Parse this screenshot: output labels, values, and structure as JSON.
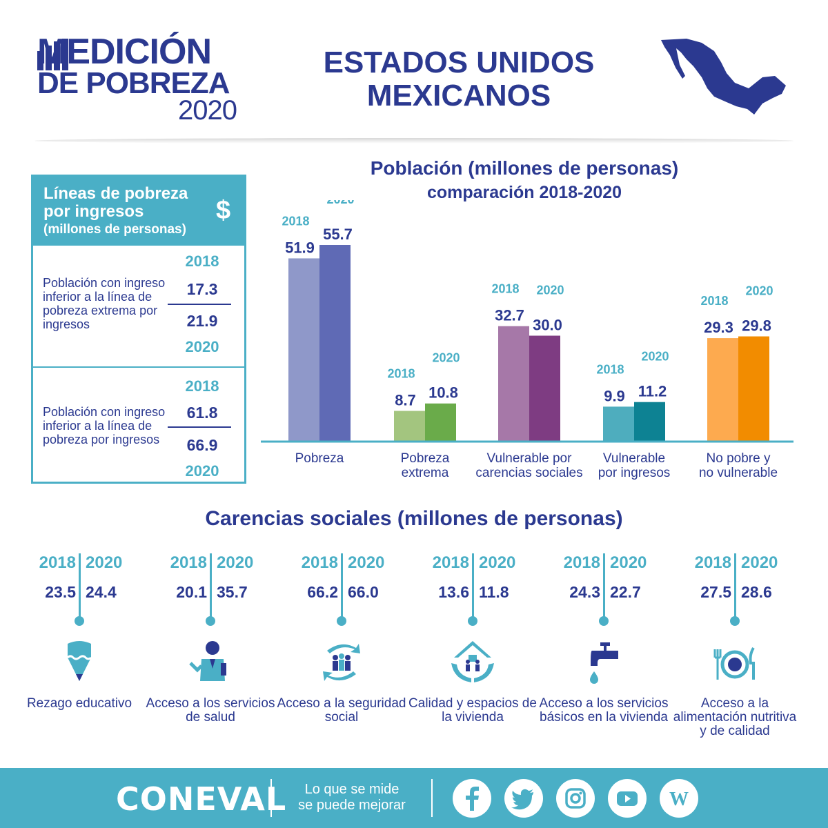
{
  "header": {
    "logo_line1": "MEDICIÓN",
    "logo_line2": "DE POBREZA",
    "logo_year": "2020",
    "country_line1": "ESTADOS UNIDOS",
    "country_line2": "MEXICANOS",
    "map_icon": "mexico-map-icon"
  },
  "poverty_lines": {
    "title": "Líneas de pobreza por ingresos",
    "subtitle": "(millones de personas)",
    "icon_text": "$",
    "rows": [
      {
        "description": "Población con ingreso inferior a la línea de pobreza extrema por ingresos",
        "year_top": "2018",
        "value_top": "17.3",
        "value_bottom": "21.9",
        "year_bottom": "2020"
      },
      {
        "description": "Población con ingreso inferior a la línea de pobreza por ingresos",
        "year_top": "2018",
        "value_top": "61.8",
        "value_bottom": "66.9",
        "year_bottom": "2020"
      }
    ]
  },
  "chart_data": {
    "type": "bar",
    "title": "Población (millones de personas)",
    "subtitle": "comparación 2018-2020",
    "categories": [
      "Pobreza",
      "Pobreza extrema",
      "Vulnerable por carencias sociales",
      "Vulnerable por ingresos",
      "No pobre y no vulnerable"
    ],
    "category_labels": [
      [
        "Pobreza"
      ],
      [
        "Pobreza",
        "extrema"
      ],
      [
        "Vulnerable por",
        "carencias sociales"
      ],
      [
        "Vulnerable",
        "por ingresos"
      ],
      [
        "No pobre y",
        "no vulnerable"
      ]
    ],
    "series": [
      {
        "name": "2018",
        "values": [
          51.9,
          8.7,
          32.7,
          9.9,
          29.3
        ]
      },
      {
        "name": "2020",
        "values": [
          55.7,
          10.8,
          30.0,
          11.2,
          29.8
        ]
      }
    ],
    "value_labels": [
      [
        "51.9",
        "55.7"
      ],
      [
        "8.7",
        "10.8"
      ],
      [
        "32.7",
        "30.0"
      ],
      [
        "9.9",
        "11.2"
      ],
      [
        "29.3",
        "29.8"
      ]
    ],
    "colors_2018": [
      "#8f98c9",
      "#a3c57f",
      "#a678a8",
      "#4eadbe",
      "#fdaa4f"
    ],
    "colors_2020": [
      "#5f6ab5",
      "#6aab4a",
      "#7e3c82",
      "#0d8293",
      "#f28c00"
    ],
    "ylim": [
      0,
      60
    ],
    "legend": "none",
    "grid": false
  },
  "carencias": {
    "title": "Carencias sociales (millones de personas)",
    "year_left": "2018",
    "year_right": "2020",
    "items": [
      {
        "v2018": "23.5",
        "v2020": "24.4",
        "label": "Rezago educativo",
        "icon": "pencil-icon"
      },
      {
        "v2018": "20.1",
        "v2020": "35.7",
        "label": "Acceso a los servicios de salud",
        "icon": "doctor-icon"
      },
      {
        "v2018": "66.2",
        "v2020": "66.0",
        "label": "Acceso a la seguridad social",
        "icon": "social-security-icon"
      },
      {
        "v2018": "13.6",
        "v2020": "11.8",
        "label": "Calidad y espacios de la vivienda",
        "icon": "house-hands-icon"
      },
      {
        "v2018": "24.3",
        "v2020": "22.7",
        "label": "Acceso a los servicios básicos en la vivienda",
        "icon": "faucet-icon"
      },
      {
        "v2018": "27.5",
        "v2020": "28.6",
        "label": "Acceso a la alimentación nutritiva y de calidad",
        "icon": "plate-cutlery-icon"
      }
    ]
  },
  "footer": {
    "brand": "CONEVAL",
    "slogan_line1": "Lo que se mide",
    "slogan_line2": "se puede mejorar",
    "social": [
      "facebook-icon",
      "twitter-icon",
      "instagram-icon",
      "youtube-icon",
      "wordpress-icon"
    ]
  },
  "colors": {
    "navy": "#2b3990",
    "teal": "#4aafc6"
  }
}
